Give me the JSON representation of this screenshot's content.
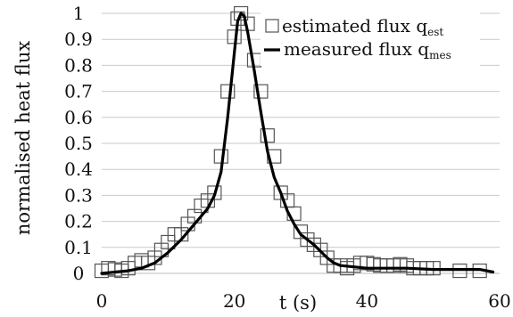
{
  "chart_data": {
    "type": "line",
    "xlabel": "t (s)",
    "ylabel": "normalised heat flux",
    "xlim": [
      0,
      60
    ],
    "ylim": [
      0,
      1
    ],
    "x_ticks": [
      0,
      20,
      40,
      60
    ],
    "x_tick_labels": [
      "0",
      "20",
      "40",
      "60"
    ],
    "y_ticks": [
      0,
      0.1,
      0.2,
      0.3,
      0.4,
      0.5,
      0.6,
      0.7,
      0.8,
      0.9,
      1
    ],
    "y_tick_labels": [
      "0",
      "0.1",
      "0.2",
      "0.3",
      "0.4",
      "0.5",
      "0.6",
      "0.7",
      "0.8",
      "0.9",
      "1"
    ],
    "grid": "horizontal",
    "legend_position": "top-right",
    "series": [
      {
        "name": "estimated flux q",
        "name_subscript": "est",
        "style": "open-square-markers",
        "color": "#555555",
        "points": [
          [
            0,
            0.01
          ],
          [
            1,
            0.02
          ],
          [
            2,
            0.015
          ],
          [
            3,
            0.01
          ],
          [
            4,
            0.02
          ],
          [
            5,
            0.04
          ],
          [
            6,
            0.05
          ],
          [
            7,
            0.04
          ],
          [
            8,
            0.06
          ],
          [
            9,
            0.09
          ],
          [
            10,
            0.12
          ],
          [
            11,
            0.15
          ],
          [
            12,
            0.15
          ],
          [
            13,
            0.19
          ],
          [
            14,
            0.22
          ],
          [
            15,
            0.26
          ],
          [
            16,
            0.28
          ],
          [
            17,
            0.31
          ],
          [
            18,
            0.45
          ],
          [
            19,
            0.7
          ],
          [
            20,
            0.91
          ],
          [
            20.5,
            0.98
          ],
          [
            21,
            1.0
          ],
          [
            22,
            0.96
          ],
          [
            23,
            0.82
          ],
          [
            24,
            0.7
          ],
          [
            25,
            0.53
          ],
          [
            26,
            0.45
          ],
          [
            27,
            0.31
          ],
          [
            28,
            0.28
          ],
          [
            29,
            0.23
          ],
          [
            30,
            0.16
          ],
          [
            31,
            0.13
          ],
          [
            32,
            0.11
          ],
          [
            33,
            0.09
          ],
          [
            34,
            0.06
          ],
          [
            35,
            0.03
          ],
          [
            36,
            0.03
          ],
          [
            37,
            0.02
          ],
          [
            38,
            0.03
          ],
          [
            39,
            0.04
          ],
          [
            40,
            0.04
          ],
          [
            41,
            0.035
          ],
          [
            42,
            0.03
          ],
          [
            43,
            0.03
          ],
          [
            44,
            0.03
          ],
          [
            45,
            0.035
          ],
          [
            46,
            0.03
          ],
          [
            47,
            0.02
          ],
          [
            48,
            0.02
          ],
          [
            49,
            0.02
          ],
          [
            50,
            0.02
          ],
          [
            54,
            0.01
          ],
          [
            57,
            0.01
          ]
        ]
      },
      {
        "name": "measured flux q",
        "name_subscript": "mes",
        "style": "solid-line",
        "color": "#000000",
        "points": [
          [
            0,
            0.0
          ],
          [
            2,
            0.005
          ],
          [
            4,
            0.01
          ],
          [
            6,
            0.02
          ],
          [
            8,
            0.04
          ],
          [
            10,
            0.08
          ],
          [
            12,
            0.13
          ],
          [
            14,
            0.19
          ],
          [
            16,
            0.25
          ],
          [
            17,
            0.3
          ],
          [
            18,
            0.39
          ],
          [
            19,
            0.6
          ],
          [
            20,
            0.85
          ],
          [
            20.5,
            0.97
          ],
          [
            21,
            1.0
          ],
          [
            21.5,
            0.99
          ],
          [
            22,
            0.93
          ],
          [
            23,
            0.78
          ],
          [
            24,
            0.62
          ],
          [
            25,
            0.47
          ],
          [
            26,
            0.37
          ],
          [
            27,
            0.31
          ],
          [
            28,
            0.24
          ],
          [
            29,
            0.19
          ],
          [
            30,
            0.15
          ],
          [
            32,
            0.11
          ],
          [
            34,
            0.06
          ],
          [
            35,
            0.04
          ],
          [
            36,
            0.03
          ],
          [
            38,
            0.025
          ],
          [
            40,
            0.02
          ],
          [
            43,
            0.02
          ],
          [
            46,
            0.02
          ],
          [
            50,
            0.015
          ],
          [
            54,
            0.015
          ],
          [
            57,
            0.015
          ],
          [
            59,
            0.005
          ]
        ]
      }
    ]
  }
}
